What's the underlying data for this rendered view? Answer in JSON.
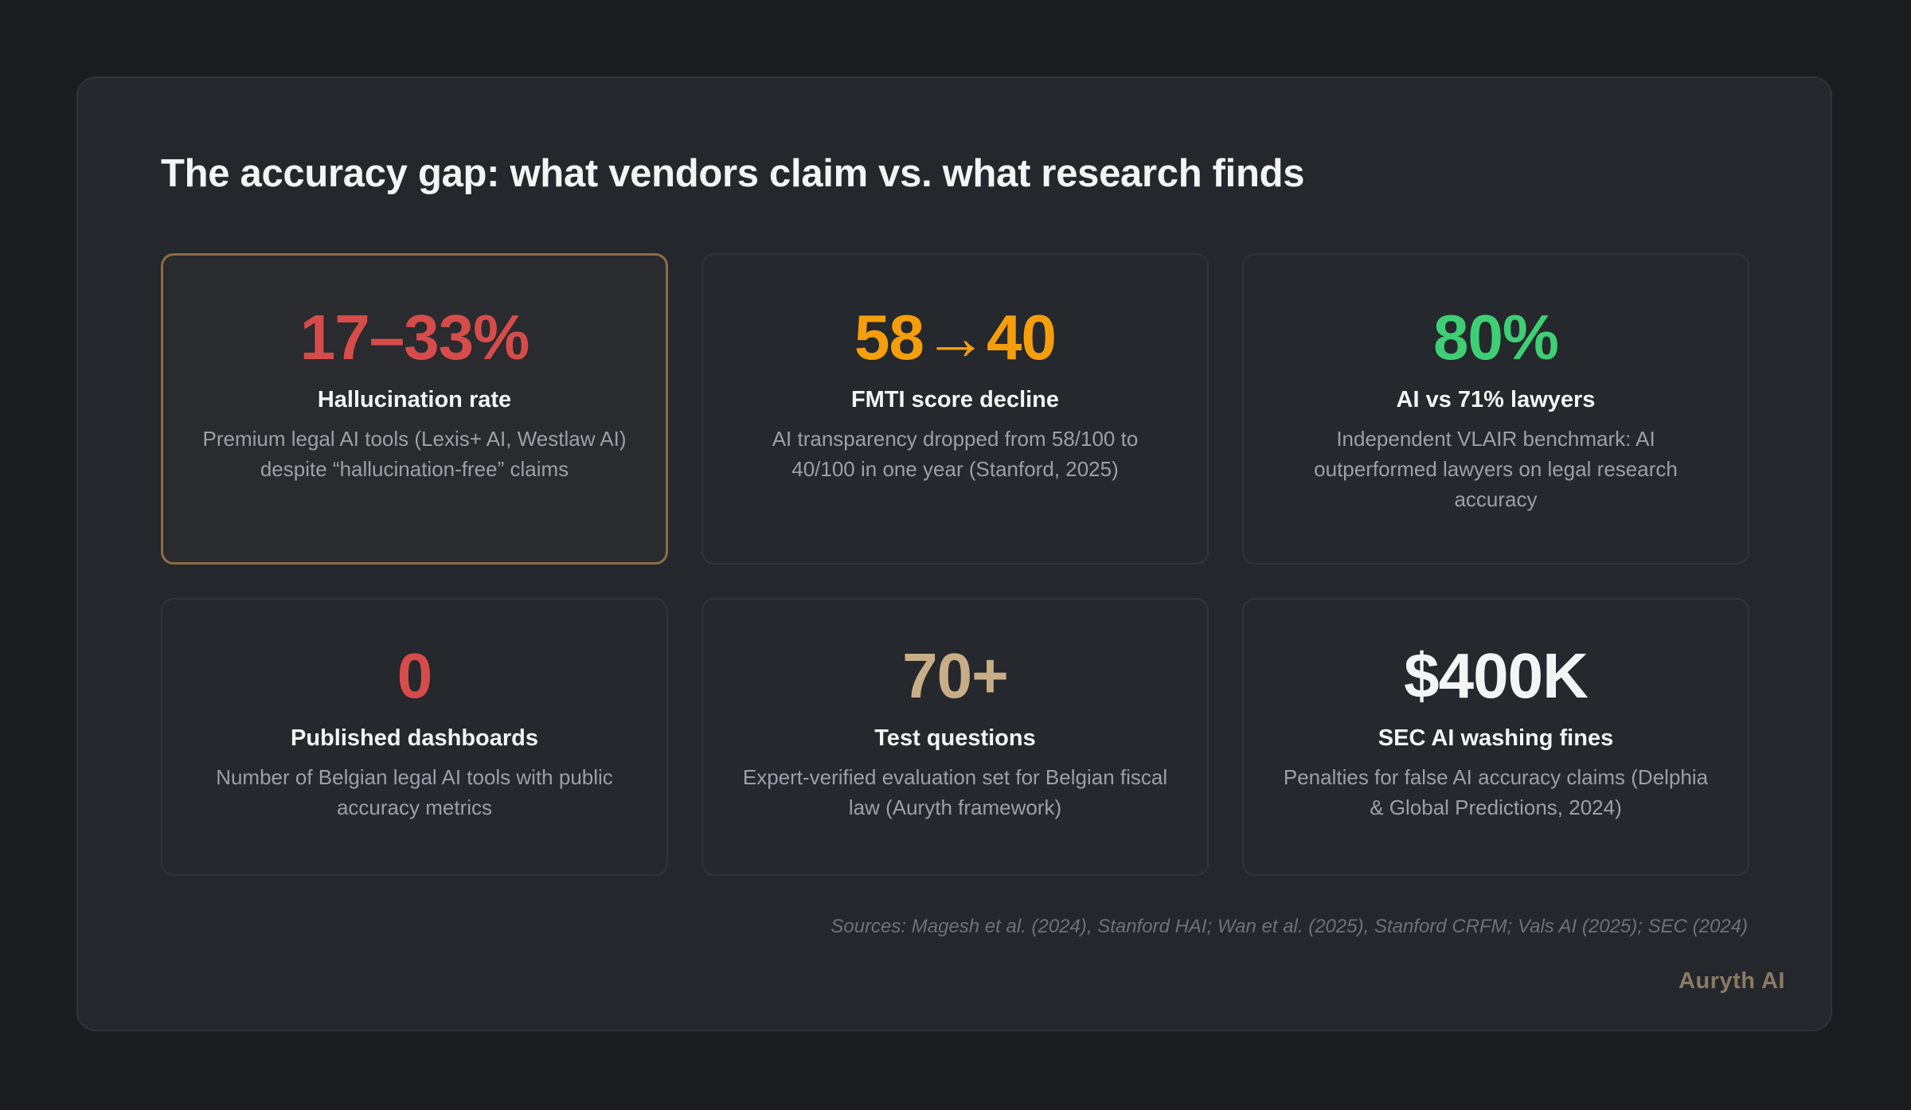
{
  "title": "The accuracy gap: what vendors claim vs. what research finds",
  "colors": {
    "page_background": "#1b1c20",
    "panel_background": "#24272c",
    "highlight_border": "#8c6d42",
    "red": "#d64c4a",
    "orange": "#f59e0b",
    "green": "#3ecf74",
    "tan": "#c8ad86",
    "white": "#f3f4f6",
    "muted": "#9ba0a8"
  },
  "cards": [
    {
      "stat": "17–33%",
      "stat_color": "#d64c4a",
      "label": "Hallucination rate",
      "description": "Premium legal AI tools (Lexis+ AI, Westlaw AI) despite “hallucination-free” claims",
      "highlighted": true
    },
    {
      "stat": "58→40",
      "stat_color": "#f59e0b",
      "label": "FMTI score decline",
      "description": "AI transparency dropped from 58/100 to 40/100 in one year (Stanford, 2025)",
      "highlighted": false
    },
    {
      "stat": "80%",
      "stat_color": "#3ecf74",
      "label": "AI vs 71% lawyers",
      "description": "Independent VLAIR benchmark: AI outperformed lawyers on legal research accuracy",
      "highlighted": false
    },
    {
      "stat": "0",
      "stat_color": "#d64c4a",
      "label": "Published dashboards",
      "description": "Number of Belgian legal AI tools with public accuracy metrics",
      "highlighted": false
    },
    {
      "stat": "70+",
      "stat_color": "#c8ad86",
      "label": "Test questions",
      "description": "Expert-verified evaluation set for Belgian fiscal law (Auryth framework)",
      "highlighted": false
    },
    {
      "stat": "$400K",
      "stat_color": "#f3f4f6",
      "label": "SEC AI washing fines",
      "description": "Penalties for false AI accuracy claims (Delphia & Global Predictions, 2024)",
      "highlighted": false
    }
  ],
  "sources": "Sources: Magesh et al. (2024), Stanford HAI; Wan et al. (2025), Stanford CRFM; Vals AI (2025); SEC (2024)",
  "brand": "Auryth AI"
}
